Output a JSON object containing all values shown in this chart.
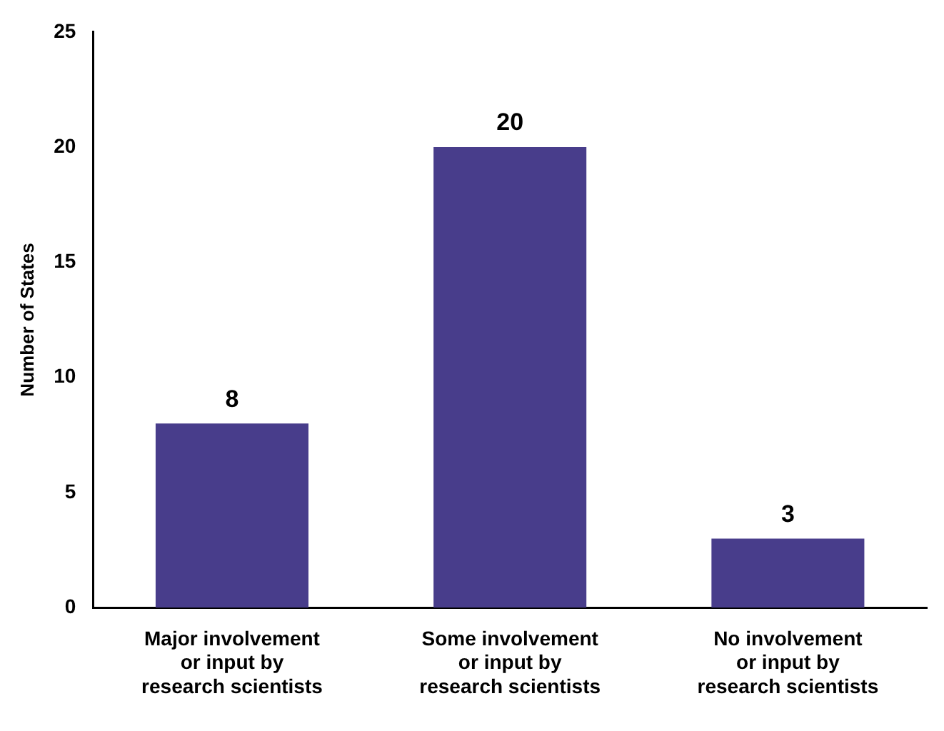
{
  "chart_data": {
    "type": "bar",
    "ylabel": "Number of States",
    "categories": [
      "Major involvement\nor input by\nresearch scientists",
      "Some involvement\nor input by\nresearch scientists",
      "No involvement\nor input by\nresearch scientists"
    ],
    "values": [
      8,
      20,
      3
    ],
    "color": "#483d8b",
    "ylim": [
      0,
      25
    ],
    "yticks": [
      0,
      5,
      10,
      15,
      20,
      25
    ],
    "grid": false,
    "data_labels": true,
    "legend": false
  }
}
